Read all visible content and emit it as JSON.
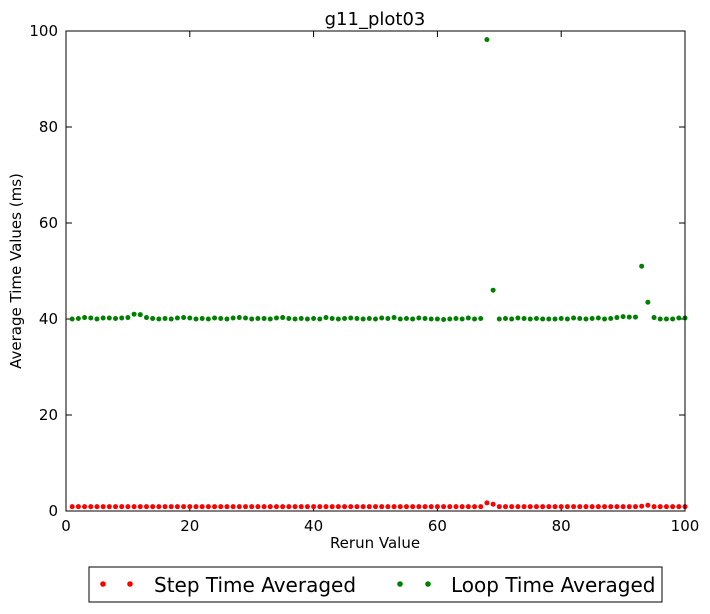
{
  "chart_data": {
    "type": "scatter",
    "title": "g11_plot03",
    "xlabel": "Rerun Value",
    "ylabel": "Average Time Values (ms)",
    "xlim": [
      0,
      100
    ],
    "ylim": [
      0,
      100
    ],
    "x_ticks": [
      "0",
      "20",
      "40",
      "60",
      "80",
      "100"
    ],
    "y_ticks": [
      "0",
      "20",
      "40",
      "60",
      "80",
      "100"
    ],
    "grid": false,
    "legend_position": "bottom-center",
    "series": [
      {
        "name": "Step Time Averaged",
        "color": "#ff0000",
        "x": [
          1,
          2,
          3,
          4,
          5,
          6,
          7,
          8,
          9,
          10,
          11,
          12,
          13,
          14,
          15,
          16,
          17,
          18,
          19,
          20,
          21,
          22,
          23,
          24,
          25,
          26,
          27,
          28,
          29,
          30,
          31,
          32,
          33,
          34,
          35,
          36,
          37,
          38,
          39,
          40,
          41,
          42,
          43,
          44,
          45,
          46,
          47,
          48,
          49,
          50,
          51,
          52,
          53,
          54,
          55,
          56,
          57,
          58,
          59,
          60,
          61,
          62,
          63,
          64,
          65,
          66,
          67,
          68,
          69,
          70,
          71,
          72,
          73,
          74,
          75,
          76,
          77,
          78,
          79,
          80,
          81,
          82,
          83,
          84,
          85,
          86,
          87,
          88,
          89,
          90,
          91,
          92,
          93,
          94,
          95,
          96,
          97,
          98,
          99,
          100
        ],
        "y": [
          0.9,
          0.9,
          0.9,
          0.9,
          0.9,
          0.9,
          0.9,
          0.9,
          0.9,
          0.9,
          0.9,
          0.9,
          0.9,
          0.9,
          0.9,
          0.9,
          0.9,
          0.9,
          0.9,
          0.9,
          0.9,
          0.9,
          0.9,
          0.9,
          0.9,
          0.9,
          0.9,
          0.9,
          0.9,
          0.9,
          0.9,
          0.9,
          0.9,
          0.9,
          0.9,
          0.9,
          0.9,
          0.9,
          0.9,
          0.9,
          0.9,
          0.9,
          0.9,
          0.9,
          0.9,
          0.9,
          0.9,
          0.9,
          0.9,
          0.9,
          0.9,
          0.9,
          0.9,
          0.9,
          0.9,
          0.9,
          0.9,
          0.9,
          0.9,
          0.9,
          0.9,
          0.9,
          0.9,
          0.9,
          0.9,
          0.9,
          0.9,
          1.7,
          1.4,
          0.9,
          0.9,
          0.9,
          0.9,
          0.9,
          0.9,
          0.9,
          0.9,
          0.9,
          0.9,
          0.9,
          0.9,
          0.9,
          0.9,
          0.9,
          0.9,
          0.9,
          0.9,
          0.9,
          0.9,
          0.9,
          0.9,
          0.9,
          1.0,
          1.2,
          0.9,
          0.9,
          0.9,
          0.9,
          0.9,
          0.9
        ]
      },
      {
        "name": "Loop Time Averaged",
        "color": "#008000",
        "x": [
          1,
          2,
          3,
          4,
          5,
          6,
          7,
          8,
          9,
          10,
          11,
          12,
          13,
          14,
          15,
          16,
          17,
          18,
          19,
          20,
          21,
          22,
          23,
          24,
          25,
          26,
          27,
          28,
          29,
          30,
          31,
          32,
          33,
          34,
          35,
          36,
          37,
          38,
          39,
          40,
          41,
          42,
          43,
          44,
          45,
          46,
          47,
          48,
          49,
          50,
          51,
          52,
          53,
          54,
          55,
          56,
          57,
          58,
          59,
          60,
          61,
          62,
          63,
          64,
          65,
          66,
          67,
          68,
          69,
          70,
          71,
          72,
          73,
          74,
          75,
          76,
          77,
          78,
          79,
          80,
          81,
          82,
          83,
          84,
          85,
          86,
          87,
          88,
          89,
          90,
          91,
          92,
          93,
          94,
          95,
          96,
          97,
          98,
          99,
          100
        ],
        "y": [
          40.0,
          40.1,
          40.3,
          40.2,
          40.0,
          40.2,
          40.2,
          40.1,
          40.2,
          40.3,
          41.0,
          40.9,
          40.3,
          40.1,
          40.0,
          40.1,
          40.0,
          40.2,
          40.3,
          40.2,
          40.0,
          40.1,
          40.0,
          40.2,
          40.1,
          40.0,
          40.2,
          40.3,
          40.2,
          40.0,
          40.1,
          40.1,
          40.0,
          40.2,
          40.3,
          40.1,
          40.0,
          40.1,
          40.0,
          40.1,
          40.0,
          40.3,
          40.1,
          40.0,
          40.1,
          40.2,
          40.1,
          40.0,
          40.1,
          40.0,
          40.2,
          40.1,
          40.3,
          40.0,
          40.1,
          40.0,
          40.2,
          40.1,
          40.0,
          40.0,
          39.9,
          40.0,
          40.1,
          40.0,
          40.2,
          40.0,
          40.1,
          98.2,
          46.0,
          40.0,
          40.1,
          40.0,
          40.2,
          40.1,
          40.0,
          40.1,
          40.0,
          40.0,
          40.0,
          40.1,
          40.0,
          40.2,
          40.1,
          40.0,
          40.1,
          40.2,
          40.0,
          40.1,
          40.3,
          40.5,
          40.4,
          40.4,
          51.0,
          43.5,
          40.3,
          40.0,
          40.0,
          40.0,
          40.2,
          40.2
        ]
      }
    ]
  }
}
